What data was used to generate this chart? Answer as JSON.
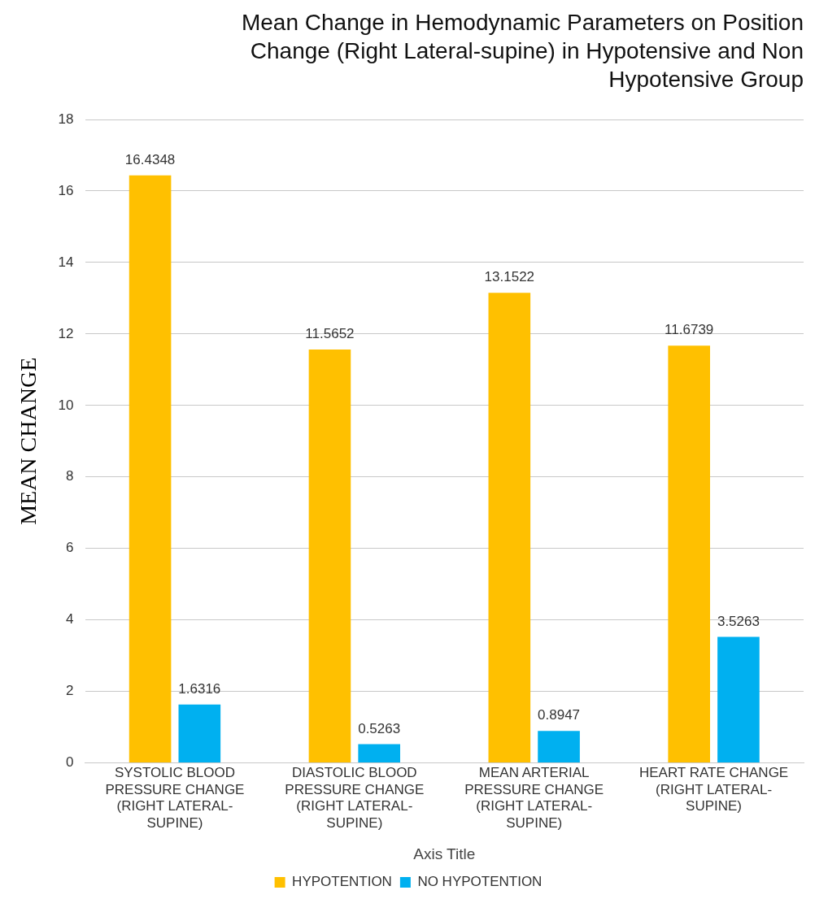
{
  "chart_data": {
    "type": "bar",
    "title": "Mean Change in Hemodynamic Parameters on Position Change (Right Lateral-supine) in Hypotensive and Non Hypotensive Group",
    "xlabel": "Axis Title",
    "ylabel": "MEAN CHANGE",
    "categories": [
      "SYSTOLIC BLOOD PRESSURE CHANGE (RIGHT LATERAL-SUPINE)",
      "DIASTOLIC BLOOD PRESSURE CHANGE (RIGHT LATERAL-SUPINE)",
      "MEAN ARTERIAL PRESSURE CHANGE (RIGHT LATERAL-SUPINE)",
      "HEART RATE CHANGE (RIGHT LATERAL-SUPINE)"
    ],
    "series": [
      {
        "name": "HYPOTENTION",
        "color": "#ffc000",
        "values": [
          16.4348,
          11.5652,
          13.1522,
          11.6739
        ]
      },
      {
        "name": "NO HYPOTENTION",
        "color": "#00b0f0",
        "values": [
          1.6316,
          0.5263,
          0.8947,
          3.5263
        ]
      }
    ],
    "ylim": [
      0,
      18
    ],
    "yticks": [
      0,
      2,
      4,
      6,
      8,
      10,
      12,
      14,
      16,
      18
    ],
    "grid": "y",
    "legend": "bottom",
    "data_labels": true
  }
}
